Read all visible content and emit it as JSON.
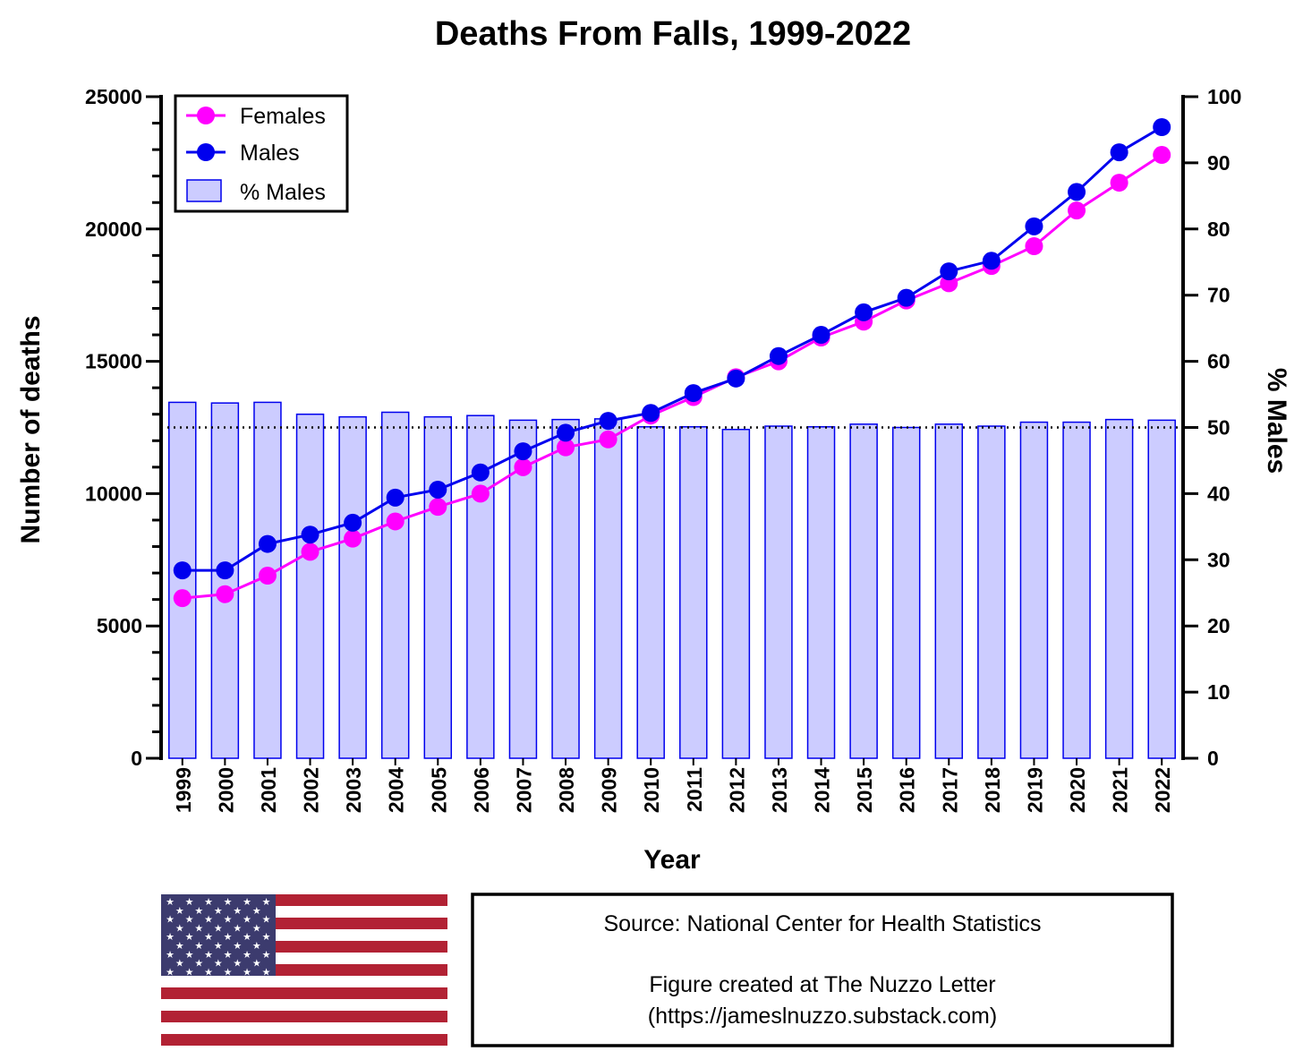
{
  "chart_data": {
    "type": "bar",
    "title": "Deaths From Falls, 1999-2022",
    "xlabel": "Year",
    "ylabel": "Number of deaths",
    "y2label": "% Males",
    "categories": [
      "1999",
      "2000",
      "2001",
      "2002",
      "2003",
      "2004",
      "2005",
      "2006",
      "2007",
      "2008",
      "2009",
      "2010",
      "2011",
      "2012",
      "2013",
      "2014",
      "2015",
      "2016",
      "2017",
      "2018",
      "2019",
      "2020",
      "2021",
      "2022"
    ],
    "ylim": [
      0,
      25000
    ],
    "y2lim": [
      0,
      100
    ],
    "yticks": [
      "0",
      "5000",
      "10000",
      "15000",
      "20000",
      "25000"
    ],
    "y2ticks": [
      "0",
      "10",
      "20",
      "30",
      "40",
      "50",
      "60",
      "70",
      "80",
      "90",
      "100"
    ],
    "reference_line_pct": 50,
    "series": [
      {
        "name": "Females",
        "kind": "line",
        "axis": "left",
        "color": "#ff00ff",
        "values": [
          6050,
          6200,
          6900,
          7800,
          8300,
          8950,
          9500,
          10000,
          11000,
          11750,
          12050,
          12950,
          13650,
          14400,
          15000,
          15900,
          16500,
          17300,
          17950,
          18600,
          19350,
          20700,
          21750,
          22800
        ]
      },
      {
        "name": "Males",
        "kind": "line",
        "axis": "left",
        "color": "#0000ee",
        "values": [
          7100,
          7100,
          8100,
          8450,
          8900,
          9850,
          10150,
          10800,
          11600,
          12300,
          12750,
          13050,
          13800,
          14350,
          15200,
          16000,
          16850,
          17400,
          18400,
          18800,
          20100,
          21400,
          22900,
          23850
        ]
      },
      {
        "name": "% Males",
        "kind": "bar",
        "axis": "right",
        "color": "#ccccff",
        "values": [
          53.8,
          53.7,
          53.8,
          52.0,
          51.6,
          52.3,
          51.6,
          51.8,
          51.1,
          51.2,
          51.3,
          50.1,
          50.1,
          49.7,
          50.2,
          50.1,
          50.5,
          50.0,
          50.5,
          50.2,
          50.8,
          50.8,
          51.2,
          51.1
        ]
      }
    ],
    "legend_position": "top-left"
  },
  "colors": {
    "females": "#ff00ff",
    "males": "#0000ee",
    "bar_fill": "#ccccff",
    "bar_stroke": "#0000ee",
    "flag_red": "#b22234",
    "flag_blue": "#3c3b6e"
  },
  "image": {
    "name": "us-flag"
  },
  "source_box": {
    "line1": "Source: National Center for Health Statistics",
    "line2": "Figure created at The Nuzzo Letter",
    "line3": "(https://jameslnuzzo.substack.com)"
  }
}
